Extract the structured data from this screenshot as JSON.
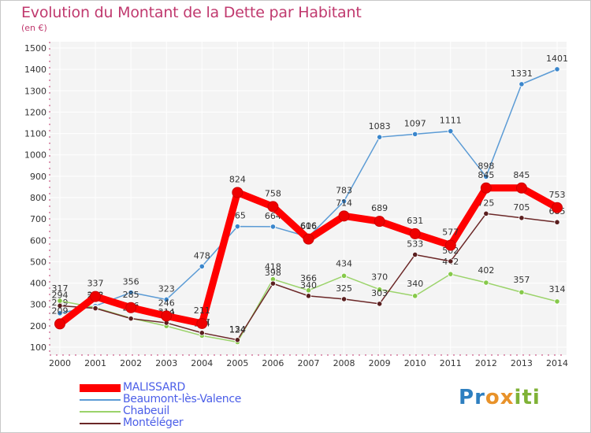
{
  "title": "Evolution du Montant de la Dette par Habitant",
  "unit": "(en €)",
  "logo": {
    "text": "Proxiti",
    "letters": [
      {
        "ch": "P",
        "color": "#2e7fc0"
      },
      {
        "ch": "r",
        "color": "#2e7fc0"
      },
      {
        "ch": "o",
        "color": "#e8922a"
      },
      {
        "ch": "x",
        "color": "#e8922a"
      },
      {
        "ch": "i",
        "color": "#7fb236"
      },
      {
        "ch": "t",
        "color": "#7fb236"
      },
      {
        "ch": "i",
        "color": "#7fb236"
      }
    ]
  },
  "chart_data": {
    "type": "line",
    "title": "Evolution du Montant de la Dette par Habitant",
    "ylabel": "(en €)",
    "xlabel": "",
    "ylim": [
      100,
      1500
    ],
    "yticks": [
      100,
      200,
      300,
      400,
      500,
      600,
      700,
      800,
      900,
      1000,
      1100,
      1200,
      1300,
      1400,
      1500
    ],
    "grid": true,
    "legend_position": "bottom-left",
    "categories": [
      "2000",
      "2001",
      "2002",
      "2003",
      "2004",
      "2005",
      "2006",
      "2007",
      "2008",
      "2009",
      "2010",
      "2011",
      "2012",
      "2013",
      "2014"
    ],
    "series": [
      {
        "name": "Beaumont-lès-Valence",
        "color": "#5b9bd5",
        "dot": "#3a86cc",
        "values": [
          259,
          293,
          356,
          323,
          478,
          665,
          664,
          616,
          783,
          1083,
          1097,
          1111,
          898,
          1331,
          1401
        ]
      },
      {
        "name": "Chabeuil",
        "color": "#9bd36a",
        "dot": "#86c94a",
        "values": [
          317,
          285,
          236,
          199,
          154,
          124,
          418,
          366,
          434,
          370,
          340,
          442,
          402,
          357,
          314
        ]
      },
      {
        "name": "Montéléger",
        "color": "#6b2727",
        "dot": "#5a1f1f",
        "values": [
          294,
          282,
          234,
          214,
          167,
          134,
          398,
          340,
          325,
          303,
          533,
          502,
          725,
          705,
          685
        ]
      },
      {
        "name": "MALISSARD",
        "color": "#ff0000",
        "dot": "#ee0000",
        "values": [
          209,
          337,
          285,
          246,
          211,
          824,
          758,
          606,
          714,
          689,
          631,
          577,
          845,
          845,
          753
        ]
      }
    ]
  }
}
